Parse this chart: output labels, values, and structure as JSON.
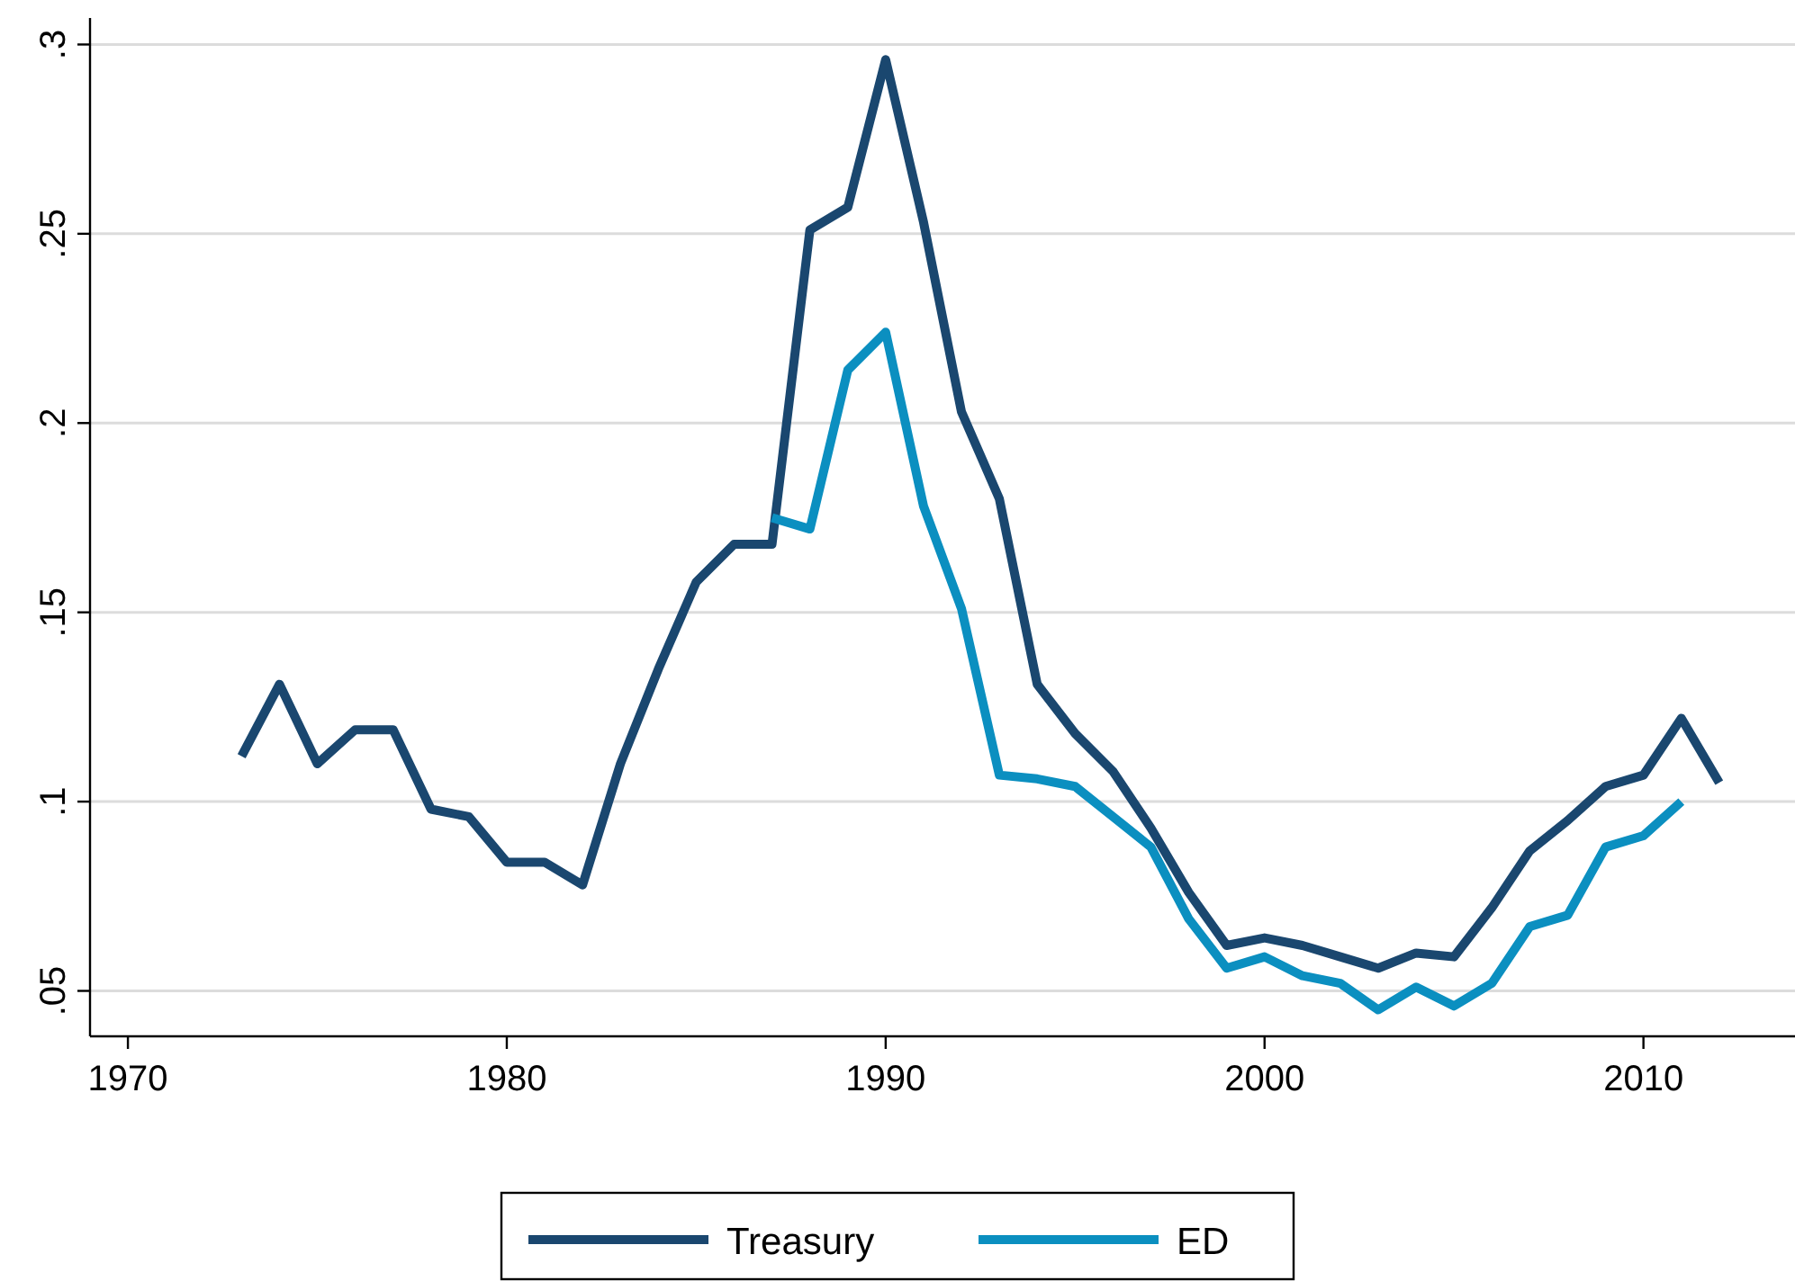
{
  "chart_data": {
    "type": "line",
    "x": [
      1973,
      1974,
      1975,
      1976,
      1977,
      1978,
      1979,
      1980,
      1981,
      1982,
      1983,
      1984,
      1985,
      1986,
      1987,
      1988,
      1989,
      1990,
      1991,
      1992,
      1993,
      1994,
      1995,
      1996,
      1997,
      1998,
      1999,
      2000,
      2001,
      2002,
      2003,
      2004,
      2005,
      2006,
      2007,
      2008,
      2009,
      2010,
      2011,
      2012
    ],
    "series": [
      {
        "name": "Treasury",
        "color": "#1a476f",
        "values": [
          0.112,
          0.131,
          0.11,
          0.119,
          0.119,
          0.098,
          0.096,
          0.084,
          0.084,
          0.078,
          0.11,
          0.135,
          0.158,
          0.168,
          0.168,
          0.251,
          0.257,
          0.296,
          0.253,
          0.203,
          0.18,
          0.131,
          0.118,
          0.108,
          0.093,
          0.076,
          0.062,
          0.064,
          0.062,
          0.059,
          0.056,
          0.06,
          0.059,
          0.072,
          0.087,
          0.095,
          0.104,
          0.107,
          0.122,
          0.105
        ]
      },
      {
        "name": "ED",
        "color": "#0b8fc0",
        "x": [
          1987,
          1988,
          1989,
          1990,
          1991,
          1992,
          1993,
          1994,
          1995,
          1996,
          1997,
          1998,
          1999,
          2000,
          2001,
          2002,
          2003,
          2004,
          2005,
          2006,
          2007,
          2008,
          2009,
          2010,
          2011
        ],
        "values": [
          0.175,
          0.172,
          0.214,
          0.224,
          0.178,
          0.151,
          0.107,
          0.106,
          0.104,
          0.096,
          0.088,
          0.069,
          0.056,
          0.059,
          0.054,
          0.052,
          0.045,
          0.051,
          0.046,
          0.052,
          0.067,
          0.07,
          0.088,
          0.091,
          0.1
        ]
      }
    ],
    "xlim": [
      1969,
      2014
    ],
    "xticks": [
      1970,
      1980,
      1990,
      2000,
      2010
    ],
    "ylim": [
      0.038,
      0.307
    ],
    "yticks": [
      {
        "value": 0.05,
        "label": ".05"
      },
      {
        "value": 0.1,
        "label": ".1"
      },
      {
        "value": 0.15,
        "label": ".15"
      },
      {
        "value": 0.2,
        "label": ".2"
      },
      {
        "value": 0.25,
        "label": ".25"
      },
      {
        "value": 0.3,
        "label": ".3"
      }
    ],
    "grid": "y",
    "legend": "bottom",
    "marker": "none",
    "line_style": "solid"
  }
}
